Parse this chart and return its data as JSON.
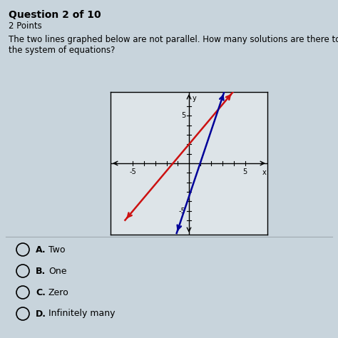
{
  "title": "Question 2 of 10",
  "subtitle": "2 Points",
  "question_text_line1": "The two lines graphed below are not parallel. How many solutions are there to",
  "question_text_line2": "the system of equations?",
  "bg_color": "#c8d4dc",
  "graph_bg": "#dde4e8",
  "red_line_slope": 1.4,
  "red_line_intercept": 2.0,
  "blue_line_slope": 3.5,
  "blue_line_intercept": -3.5,
  "choices": [
    {
      "label": "A.",
      "text": "Two"
    },
    {
      "label": "B.",
      "text": "One"
    },
    {
      "label": "C.",
      "text": "Zero"
    },
    {
      "label": "D.",
      "text": "Infinitely many"
    }
  ]
}
